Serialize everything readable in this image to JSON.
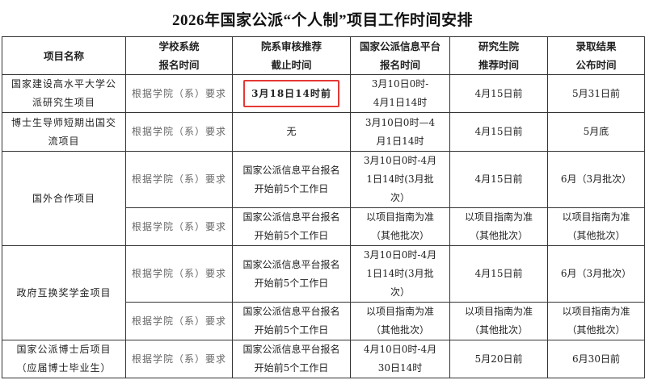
{
  "title": "2026年国家公派“个人制”项目工作时间安排",
  "headers": [
    [
      "项目名称"
    ],
    [
      "学校系统",
      "报名时间"
    ],
    [
      "院系审核推荐",
      "截止时间"
    ],
    [
      "国家公派信息平台",
      "报名时间"
    ],
    [
      "研究生院",
      "推荐时间"
    ],
    [
      "录取结果",
      "公布时间"
    ]
  ],
  "rows": [
    {
      "name": [
        "国家建设高水平大学公",
        "派研究生项目"
      ],
      "school": "根据学院（系）要求",
      "dept": [
        "3月18日14时前"
      ],
      "platform": [
        "3月10日0时-",
        "4月1日14时"
      ],
      "grad": "4月15日前",
      "result": "5月31日前",
      "highlight_color": "#e53935"
    },
    {
      "name": [
        "博士生导师短期出国交",
        "流项目"
      ],
      "school": "根据学院（系）要求",
      "dept": [
        "无"
      ],
      "platform": [
        "3月10日0时—4",
        "月1日14时"
      ],
      "grad": "4月15日前",
      "result": "5月底"
    },
    {
      "name": [
        "国外合作项目"
      ],
      "school": "根据学院（系）要求",
      "dept": [
        "国家公派信息平台报名",
        "开始前5个工作日"
      ],
      "platform": [
        "3月10日0时-4月",
        "1日14时(3月批",
        "次）"
      ],
      "grad": "4月15日前",
      "result": "6月（3月批次）"
    },
    {
      "school": "根据学院（系）要求",
      "dept": [
        "国家公派信息平台报名",
        "开始前5个工作日"
      ],
      "platform": [
        "以项目指南为准",
        "（其他批次）"
      ],
      "grad": [
        "以项目指南为准",
        "（其他批次）"
      ],
      "result": [
        "以项目指南为准",
        "（其他批次）"
      ]
    },
    {
      "name": [
        "政府互换奖学金项目"
      ],
      "school": "根据学院（系）要求",
      "dept": [
        "国家公派信息平台报名",
        "开始前5个工作日"
      ],
      "platform": [
        "3月10日0时-4月",
        "1日14时(3月批",
        "次）"
      ],
      "grad": "4月15日前",
      "result": "6月（3月批次）"
    },
    {
      "school": "根据学院（系）要求",
      "dept": [
        "国家公派信息平台报名",
        "开始前5个工作日"
      ],
      "platform": [
        "以项目指南为准",
        "（其他批次）"
      ],
      "grad": [
        "以项目指南为准",
        "（其他批次）"
      ],
      "result": [
        "以项目指南为准",
        "（其他批次）"
      ]
    },
    {
      "name": [
        "国家公派博士后项目",
        "（应届博士毕业生）"
      ],
      "school": "根据学院（系）要求",
      "dept": [
        "国家公派信息平台报名",
        "开始前5个工作日"
      ],
      "platform": [
        "4月10日0时-4月",
        "30日14时"
      ],
      "grad": "5月20日前",
      "result": "6月30日前"
    }
  ]
}
